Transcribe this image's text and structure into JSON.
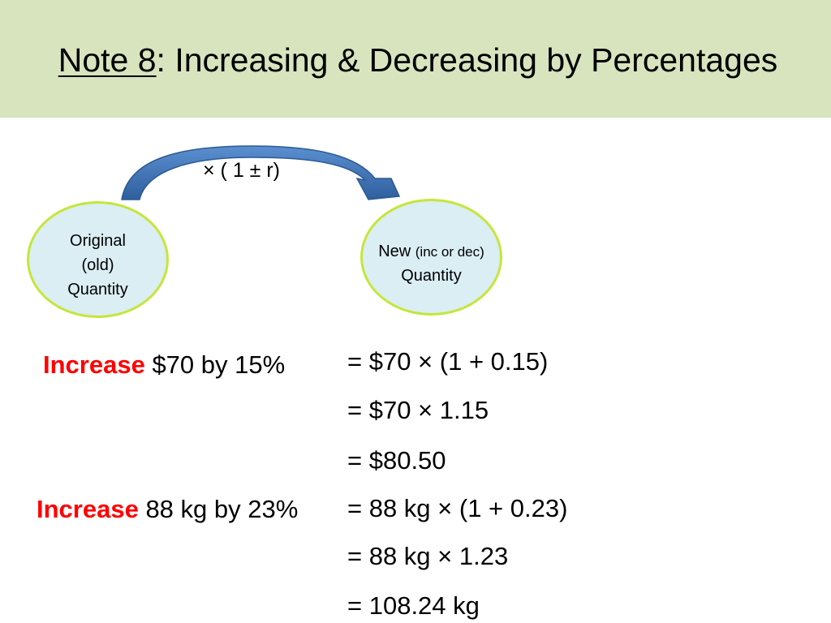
{
  "title": {
    "underlined": "Note 8",
    "rest": ": Increasing & Decreasing by Percentages"
  },
  "diagram": {
    "arrow_label": "× ( 1 ± r)",
    "original": {
      "line1": "Original",
      "line2": "(old)",
      "line3": "Quantity"
    },
    "new": {
      "word": "New",
      "qualifier": "(inc or dec)",
      "line2": "Quantity"
    }
  },
  "examples": [
    {
      "keyword": "Increase",
      "rest": " $70 by 15%",
      "steps": [
        "= $70 × (1 + 0.15)",
        "= $70 × 1.15",
        "= $80.50"
      ]
    },
    {
      "keyword": "Increase",
      "rest": " 88 kg by 23%",
      "steps": [
        "= 88 kg × (1 + 0.23)",
        "= 88 kg × 1.23",
        "= 108.24 kg"
      ]
    }
  ],
  "colors": {
    "title_bg": "#d7e4bd",
    "bubble_fill": "#daeef3",
    "bubble_border": "#c5e63a",
    "arrow": "#4f81bd",
    "keyword": "#ff0000"
  }
}
